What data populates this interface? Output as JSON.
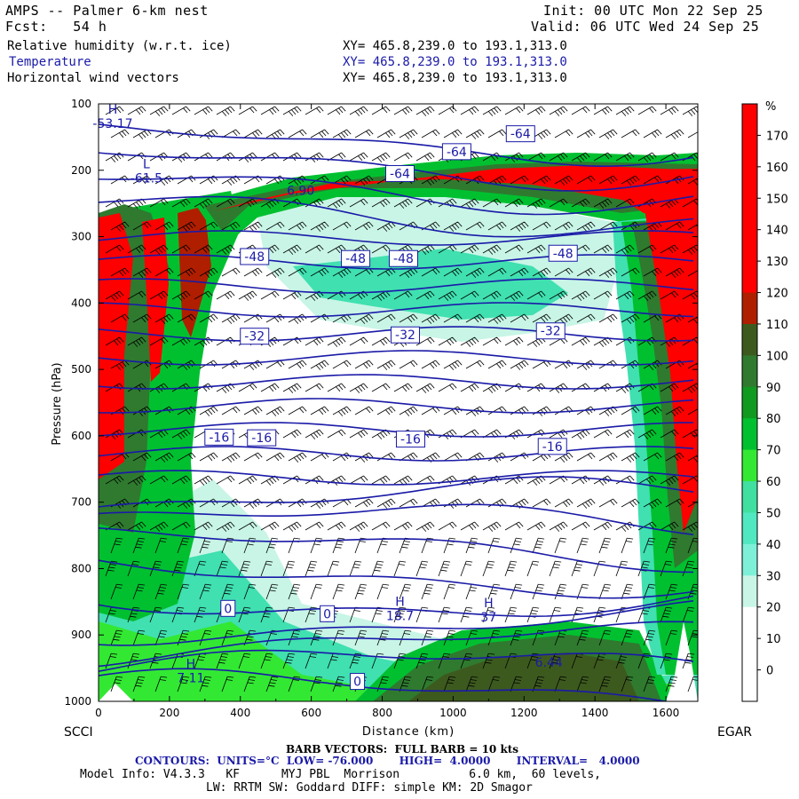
{
  "header": {
    "model": "AMPS -- Palmer 6-km nest",
    "init": "Init: 00 UTC Mon 22 Sep 25",
    "fcst": "Fcst:   54 h",
    "valid": "Valid: 06 UTC Wed 24 Sep 25",
    "field1": "Relative humidity (w.r.t. ice)",
    "field2": "Temperature",
    "field3": "Horizontal wind vectors",
    "xy": "XY= 465.8,239.0 to 193.1,313.0"
  },
  "colors": {
    "temp_contour": "#1a1aa8",
    "rh_green_light": "#c8f5e6",
    "rh_green_mid": "#40e0b0",
    "rh_green": "#00c030",
    "rh_green_dark": "#2f7a2f",
    "rh_red": "#ff0000"
  },
  "chart_data": {
    "type": "heatmap",
    "xlabel": "Distance (km)",
    "ylabel": "Pressure (hPa)",
    "xlim": [
      0,
      1690
    ],
    "ylim": [
      1000,
      100
    ],
    "x_ticks": [
      "0",
      "200",
      "400",
      "600",
      "800",
      "1000",
      "1200",
      "1400",
      "1600"
    ],
    "y_ticks": [
      "100",
      "200",
      "300",
      "400",
      "500",
      "600",
      "700",
      "800",
      "900",
      "1000"
    ],
    "left_label": "SCCI",
    "right_label": "EGAR",
    "colorbar_unit": "%",
    "colorbar_labels": [
      "170",
      "160",
      "150",
      "140",
      "130",
      "120",
      "110",
      "100",
      "90",
      "80",
      "70",
      "60",
      "50",
      "40",
      "30",
      "20",
      "10",
      "0"
    ],
    "colorbar_colors": [
      "#ff0000",
      "#ff0000",
      "#ff0000",
      "#ff0000",
      "#ff0000",
      "#ff0000",
      "#b01e00",
      "#3d5a1e",
      "#2f7a2f",
      "#119a20",
      "#00c030",
      "#33e833",
      "#40e0a0",
      "#50e8c0",
      "#7ef0d8",
      "#c8f5e6",
      "#ffffff",
      "#ffffff",
      "#ffffff"
    ],
    "temperature_labels": [
      {
        "text": "-64",
        "x": 1190,
        "p": 145
      },
      {
        "text": "-64",
        "x": 1010,
        "p": 172
      },
      {
        "text": "-64",
        "x": 850,
        "p": 205
      },
      {
        "text": "-48",
        "x": 440,
        "p": 330
      },
      {
        "text": "-48",
        "x": 725,
        "p": 333
      },
      {
        "text": "-48",
        "x": 860,
        "p": 333
      },
      {
        "text": "-48",
        "x": 1310,
        "p": 325
      },
      {
        "text": "-32",
        "x": 440,
        "p": 450
      },
      {
        "text": "-32",
        "x": 865,
        "p": 448
      },
      {
        "text": "-32",
        "x": 1275,
        "p": 442
      },
      {
        "text": "-16",
        "x": 340,
        "p": 602
      },
      {
        "text": "-16",
        "x": 460,
        "p": 603
      },
      {
        "text": "-16",
        "x": 880,
        "p": 605
      },
      {
        "text": "-16",
        "x": 1280,
        "p": 616
      },
      {
        "text": "0",
        "x": 365,
        "p": 860
      },
      {
        "text": "0",
        "x": 645,
        "p": 868
      },
      {
        "text": "0",
        "x": 730,
        "p": 970
      }
    ],
    "extrema": [
      {
        "kind": "H",
        "x": 40,
        "p": 115,
        "value": "-53.17"
      },
      {
        "kind": "L",
        "x": 135,
        "p": 197,
        "value": "-61.5"
      },
      {
        "kind": "H",
        "x": 850,
        "p": 856,
        "value": "18.7"
      },
      {
        "kind": "H",
        "x": 1100,
        "p": 858,
        "value": "37"
      },
      {
        "kind": "H",
        "x": 260,
        "p": 950,
        "value": "7.11"
      },
      {
        "kind": "",
        "x": 1270,
        "p": 948,
        "value": "6.44"
      },
      {
        "kind": "",
        "x": 570,
        "p": 237,
        "value": "6.90"
      }
    ]
  },
  "footer": {
    "barb": "BARB VECTORS:  FULL BARB = 10 kts",
    "contours": "CONTOURS:  UNITS=°C  LOW= -76.000       HIGH=  4.0000       INTERVAL=   4.0000",
    "model_info": "Model Info: V4.3.3   KF      MYJ PBL  Morrison          6.0 km,  60 levels,",
    "physics": "LW: RRTM SW: Goddard DIFF: simple KM: 2D Smagor"
  }
}
